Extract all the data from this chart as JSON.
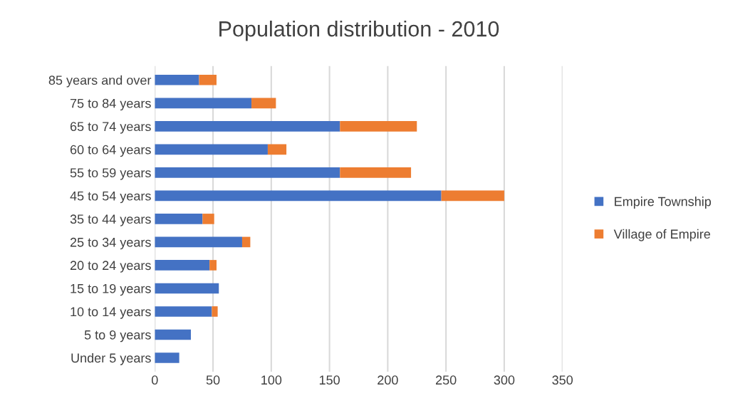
{
  "chart_data": {
    "type": "bar",
    "title": "Population distribution - 2010",
    "orientation": "horizontal",
    "stacked": true,
    "categories": [
      "85 years and over",
      "75 to 84 years",
      "65 to 74 years",
      "60 to 64 years",
      "55 to 59 years",
      "45 to 54 years",
      "35 to 44 years",
      "25 to 34 years",
      "20 to 24 years",
      "15 to 19 years",
      "10 to 14 years",
      "5 to 9 years",
      "Under 5 years"
    ],
    "series": [
      {
        "name": "Empire Township",
        "color": "#4472c4",
        "values": [
          38,
          83,
          159,
          97,
          159,
          246,
          41,
          75,
          47,
          55,
          49,
          31,
          21
        ]
      },
      {
        "name": "Village of Empire",
        "color": "#ed7d31",
        "values": [
          15,
          21,
          66,
          16,
          61,
          54,
          10,
          7,
          6,
          0,
          5,
          0,
          0
        ]
      }
    ],
    "xlim": [
      0,
      350
    ],
    "xticks": [
      0,
      50,
      100,
      150,
      200,
      250,
      300,
      350
    ],
    "grid": "x",
    "legend": "right"
  }
}
